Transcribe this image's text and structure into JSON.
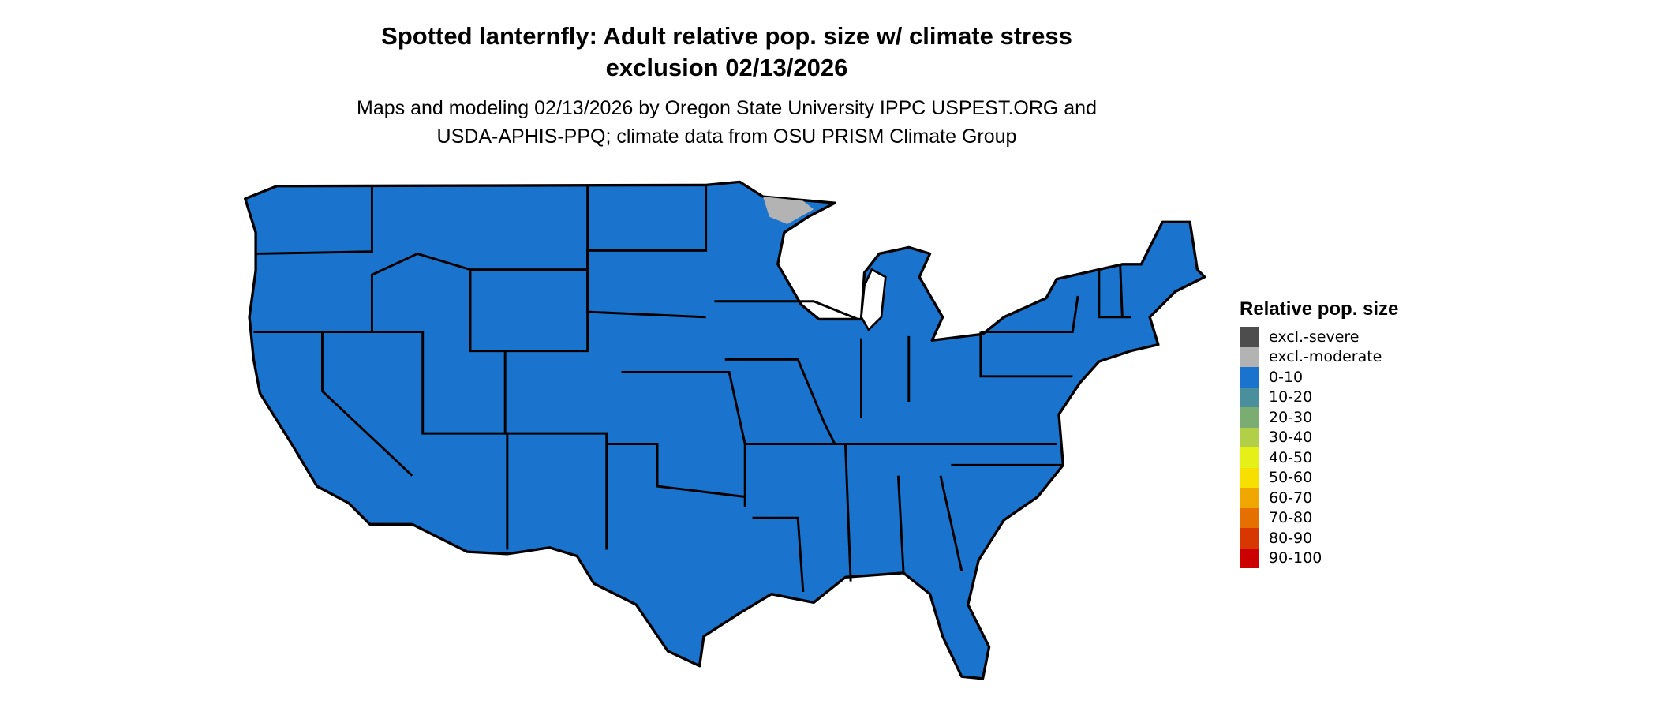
{
  "title": {
    "line1": "Spotted lanternfly: Adult relative pop. size w/ climate stress",
    "line2": "exclusion 02/13/2026"
  },
  "subtitle": {
    "line1": "Maps and modeling 02/13/2026 by Oregon State University IPPC USPEST.ORG and",
    "line2": "USDA-APHIS-PPQ; climate data from OSU PRISM Climate Group"
  },
  "map": {
    "region": "Conterminous United States",
    "fill_color": "#1a73cc",
    "excluded_patch_color": "#b3b3b3",
    "border_color": "#000000"
  },
  "legend": {
    "title": "Relative pop. size",
    "items": [
      {
        "label": "excl.-severe",
        "color": "#4d4d4d"
      },
      {
        "label": "excl.-moderate",
        "color": "#b3b3b3"
      },
      {
        "label": "0-10",
        "color": "#1a73cc"
      },
      {
        "label": "10-20",
        "color": "#4a909c"
      },
      {
        "label": "20-30",
        "color": "#7bac72"
      },
      {
        "label": "30-40",
        "color": "#b2cf48"
      },
      {
        "label": "40-50",
        "color": "#e5f018"
      },
      {
        "label": "50-60",
        "color": "#f7e000"
      },
      {
        "label": "60-70",
        "color": "#f0a800"
      },
      {
        "label": "70-80",
        "color": "#e57000"
      },
      {
        "label": "80-90",
        "color": "#d83800"
      },
      {
        "label": "90-100",
        "color": "#cc0000"
      }
    ]
  }
}
